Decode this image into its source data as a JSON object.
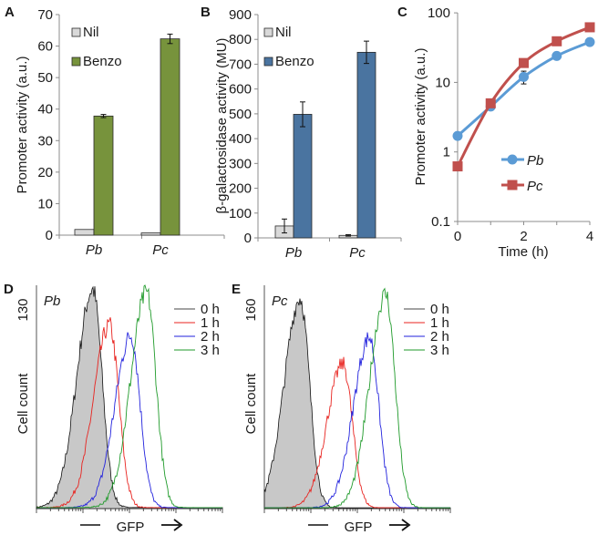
{
  "panel_labels": {
    "a": "A",
    "b": "B",
    "c": "C",
    "d": "D",
    "e": "E"
  },
  "chart_data": [
    {
      "panel": "A",
      "type": "bar",
      "ylabel": "Promoter activity (a.u.)",
      "ylim": [
        0,
        70
      ],
      "yticks": [
        "0",
        "10",
        "20",
        "30",
        "40",
        "50",
        "60",
        "70"
      ],
      "categories": [
        "Pb",
        "Pc"
      ],
      "legend": "top-left",
      "series": [
        {
          "name": "Nil",
          "color": "#d9d9d9",
          "values": [
            1.8,
            0.7
          ],
          "errors": [
            0,
            0
          ]
        },
        {
          "name": "Benzo",
          "color": "#77933c",
          "values": [
            37.8,
            62.3
          ],
          "errors": [
            0.5,
            1.5
          ]
        }
      ]
    },
    {
      "panel": "B",
      "type": "bar",
      "ylabel": "β-galactosidase activity (MU)",
      "ylim": [
        0,
        900
      ],
      "yticks": [
        "0",
        "100",
        "200",
        "300",
        "400",
        "500",
        "600",
        "700",
        "800",
        "900"
      ],
      "categories": [
        "Pb",
        "Pc"
      ],
      "legend": "top-left",
      "series": [
        {
          "name": "Nil",
          "color": "#d9d9d9",
          "values": [
            48,
            10
          ],
          "errors": [
            28,
            3
          ]
        },
        {
          "name": "Benzo",
          "color": "#4a74a0",
          "values": [
            498,
            748
          ],
          "errors": [
            50,
            45
          ]
        }
      ]
    },
    {
      "panel": "C",
      "type": "line",
      "ylabel": "Promoter activity (a.u.)",
      "xlabel": "Time (h)",
      "yscale": "log",
      "ylim": [
        0.1,
        100
      ],
      "yticks": [
        "0.1",
        "1",
        "10",
        "100"
      ],
      "xlim": [
        0,
        4
      ],
      "xticks": [
        "0",
        "2",
        "4"
      ],
      "x": [
        0,
        1,
        2,
        3,
        4
      ],
      "legend": "center-right",
      "series": [
        {
          "name": "Pb",
          "color": "#5b9bd5",
          "marker": "circle",
          "values": [
            1.7,
            4.5,
            12,
            24,
            38
          ],
          "errors": [
            0,
            0.5,
            2.5,
            0,
            0
          ]
        },
        {
          "name": "Pc",
          "color": "#c0504d",
          "marker": "square",
          "values": [
            0.62,
            5,
            19,
            39,
            62
          ],
          "errors": [
            0,
            0,
            0,
            0,
            0
          ]
        }
      ]
    },
    {
      "panel": "D",
      "type": "line",
      "subtitle": "Pb",
      "ylabel": "Cell count",
      "ymax_label": "130",
      "ylim": [
        0,
        130
      ],
      "xlabel": "GFP",
      "xscale": "log",
      "xlim_decades": [
        0,
        4
      ],
      "series": [
        {
          "name": "0 h",
          "color": "#000000",
          "filled": true,
          "peak_log_gfp": 1.21,
          "peak_count": 127
        },
        {
          "name": "1 h",
          "color": "#e8231f",
          "peak_log_gfp": 1.57,
          "peak_count": 106
        },
        {
          "name": "2 h",
          "color": "#2222dd",
          "peak_log_gfp": 2.03,
          "peak_count": 100
        },
        {
          "name": "3 h",
          "color": "#1f9a2a",
          "peak_log_gfp": 2.37,
          "peak_count": 125
        }
      ]
    },
    {
      "panel": "E",
      "type": "line",
      "subtitle": "Pc",
      "ylabel": "Cell count",
      "ymax_label": "160",
      "ylim": [
        0,
        160
      ],
      "xlabel": "GFP",
      "xscale": "log",
      "xlim_decades": [
        0,
        4
      ],
      "series": [
        {
          "name": "0 h",
          "color": "#000000",
          "filled": true,
          "peak_log_gfp": 0.77,
          "peak_count": 150
        },
        {
          "name": "1 h",
          "color": "#e8231f",
          "peak_log_gfp": 1.69,
          "peak_count": 103
        },
        {
          "name": "2 h",
          "color": "#2222dd",
          "peak_log_gfp": 2.26,
          "peak_count": 122
        },
        {
          "name": "3 h",
          "color": "#1f9a2a",
          "peak_log_gfp": 2.61,
          "peak_count": 153
        }
      ]
    }
  ]
}
